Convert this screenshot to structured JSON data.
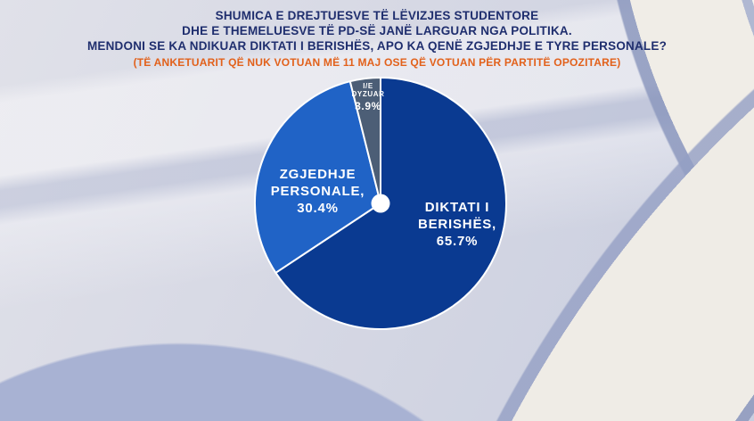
{
  "header": {
    "line1": "SHUMICA E DREJTUESVE TË LËVIZJES STUDENTORE",
    "line2": "DHE E THEMELUESVE TË PD-SË JANË LARGUAR NGA POLITIKA.",
    "line3": "MENDONI SE KA NDIKUAR DIKTATI I BERISHËS, APO KA QENË ZGJEDHJE E TYRE PERSONALE?",
    "note": "(TË ANKETUARIT QË NUK VOTUAN MË 11 MAJ OSE QË VOTUAN PËR PARTITË OPOZITARE)"
  },
  "colors": {
    "title_text": "#1f2e6e",
    "note_text": "#e2611b",
    "slice_diktati": "#0a3a91",
    "slice_zgjedhje": "#2063c6",
    "slice_dyzuar": "#4c5e76",
    "slice_border": "#ffffff",
    "label_text": "#ffffff"
  },
  "chart_data": {
    "type": "pie",
    "title": "MENDONI SE KA NDIKUAR DIKTATI I BERISHËS, APO KA QENË ZGJEDHJE E TYRE PERSONALE?",
    "start_angle_deg": 0,
    "direction": "clockwise",
    "units": "%",
    "slices": [
      {
        "label": "DIKTATI I BERISHËS",
        "value": 65.7,
        "color": "#0a3a91"
      },
      {
        "label": "ZGJEDHJE PERSONALE",
        "value": 30.4,
        "color": "#2063c6"
      },
      {
        "label": "I/E DYZUAR",
        "value": 3.9,
        "color": "#4c5e76"
      }
    ],
    "center_dot": true,
    "legend": "labels drawn on slices"
  },
  "pie_labels": {
    "diktati": {
      "l1": "DIKTATI I",
      "l2": "BERISHËS,",
      "l3": "65.7%"
    },
    "zgjedhje": {
      "l1": "ZGJEDHJE",
      "l2": "PERSONALE,",
      "l3": "30.4%"
    },
    "dyzuar": {
      "l1": "I/E",
      "l2": "DYZUAR",
      "l3": "3.9%"
    }
  }
}
